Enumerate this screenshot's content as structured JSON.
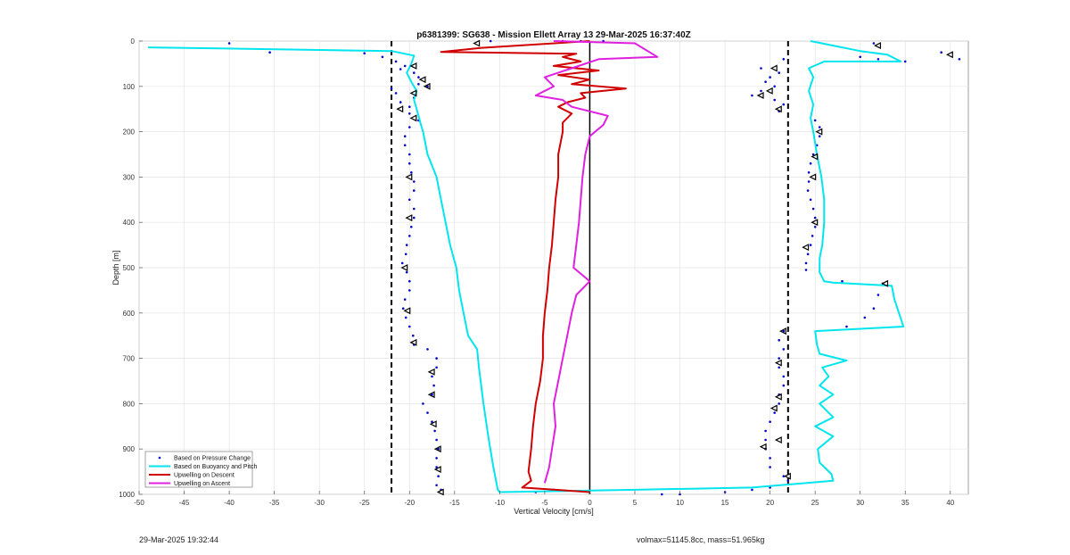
{
  "chart_data": {
    "type": "line",
    "title": "p6381399: SG638 - Mission Ellett Array 13 29-Mar-2025 16:37:40Z",
    "xlabel": "Vertical Velocity [cm/s]",
    "ylabel": "Depth [m]",
    "xlim": [
      -50,
      42
    ],
    "ylim": [
      0,
      1000
    ],
    "y_reversed": true,
    "grid": true,
    "x_ticks": [
      -50,
      -45,
      -40,
      -35,
      -30,
      -25,
      -20,
      -15,
      -10,
      -5,
      0,
      5,
      10,
      15,
      20,
      25,
      30,
      35,
      40
    ],
    "y_ticks": [
      0,
      100,
      200,
      300,
      400,
      500,
      600,
      700,
      800,
      900,
      1000
    ],
    "reference_lines": {
      "dashed_x": [
        -22,
        22
      ],
      "solid_x": [
        0
      ]
    },
    "legend_position": "bottom-left",
    "series": [
      {
        "name": "Based on Pressure Change",
        "color": "#0000cc",
        "style": "dots",
        "points": [
          [
            -40,
            5
          ],
          [
            -25,
            27
          ],
          [
            -35.5,
            25
          ],
          [
            -23,
            35
          ],
          [
            -21.5,
            45
          ],
          [
            -20.5,
            55
          ],
          [
            -21,
            62
          ],
          [
            -19.5,
            70
          ],
          [
            -19,
            80
          ],
          [
            -19,
            95
          ],
          [
            -18,
            100
          ],
          [
            -22,
            105
          ],
          [
            -21.5,
            115
          ],
          [
            -19.5,
            125
          ],
          [
            -21,
            135
          ],
          [
            -20,
            145
          ],
          [
            -20,
            160
          ],
          [
            -19,
            175
          ],
          [
            -20,
            190
          ],
          [
            -20.5,
            210
          ],
          [
            -20.5,
            230
          ],
          [
            -20,
            250
          ],
          [
            -20,
            270
          ],
          [
            -19.8,
            290
          ],
          [
            -19.5,
            310
          ],
          [
            -19.5,
            330
          ],
          [
            -20,
            350
          ],
          [
            -19.5,
            370
          ],
          [
            -19.5,
            390
          ],
          [
            -19.8,
            410
          ],
          [
            -20,
            430
          ],
          [
            -20.3,
            450
          ],
          [
            -20.4,
            470
          ],
          [
            -20.8,
            490
          ],
          [
            -20.3,
            510
          ],
          [
            -20,
            530
          ],
          [
            -20,
            550
          ],
          [
            -20.5,
            570
          ],
          [
            -20.7,
            590
          ],
          [
            -20.4,
            610
          ],
          [
            -20,
            630
          ],
          [
            -19.6,
            650
          ],
          [
            -19.5,
            670
          ],
          [
            -18,
            680
          ],
          [
            -17,
            700
          ],
          [
            -17,
            720
          ],
          [
            -17.5,
            740
          ],
          [
            -17.3,
            760
          ],
          [
            -17.5,
            780
          ],
          [
            -18.5,
            800
          ],
          [
            -18,
            820
          ],
          [
            -17.5,
            840
          ],
          [
            -17.2,
            860
          ],
          [
            -17,
            880
          ],
          [
            -16.8,
            900
          ],
          [
            -17,
            920
          ],
          [
            -17,
            940
          ],
          [
            -16.8,
            960
          ],
          [
            -17,
            980
          ],
          [
            -16.5,
            990
          ],
          [
            -3,
            0
          ],
          [
            -1,
            0
          ],
          [
            1.5,
            0
          ],
          [
            -11,
            0
          ],
          [
            21.5,
            40
          ],
          [
            19,
            60
          ],
          [
            21,
            70
          ],
          [
            20,
            80
          ],
          [
            19.5,
            90
          ],
          [
            20.5,
            100
          ],
          [
            19,
            110
          ],
          [
            18,
            120
          ],
          [
            20.5,
            130
          ],
          [
            21.5,
            140
          ],
          [
            21,
            155
          ],
          [
            25,
            175
          ],
          [
            25.5,
            190
          ],
          [
            25.5,
            210
          ],
          [
            25.2,
            230
          ],
          [
            24.8,
            250
          ],
          [
            24.5,
            270
          ],
          [
            24.3,
            290
          ],
          [
            24.3,
            310
          ],
          [
            24.2,
            330
          ],
          [
            24.5,
            350
          ],
          [
            24.8,
            370
          ],
          [
            25,
            390
          ],
          [
            25,
            410
          ],
          [
            24.7,
            430
          ],
          [
            24.5,
            450
          ],
          [
            24.2,
            470
          ],
          [
            24,
            490
          ],
          [
            24,
            505
          ],
          [
            28,
            530
          ],
          [
            32.5,
            535
          ],
          [
            32,
            560
          ],
          [
            31.5,
            590
          ],
          [
            30.5,
            610
          ],
          [
            28.5,
            630
          ],
          [
            21.5,
            640
          ],
          [
            21,
            660
          ],
          [
            21.5,
            680
          ],
          [
            21,
            700
          ],
          [
            21,
            720
          ],
          [
            21.5,
            740
          ],
          [
            21.5,
            760
          ],
          [
            21,
            780
          ],
          [
            21,
            800
          ],
          [
            20.5,
            820
          ],
          [
            20,
            840
          ],
          [
            19.5,
            860
          ],
          [
            19.5,
            880
          ],
          [
            19.5,
            900
          ],
          [
            20,
            920
          ],
          [
            20,
            940
          ],
          [
            21.5,
            960
          ],
          [
            22,
            970
          ],
          [
            30,
            35
          ],
          [
            32,
            40
          ],
          [
            35,
            45
          ],
          [
            31.5,
            5
          ],
          [
            39,
            25
          ],
          [
            41,
            40
          ],
          [
            10,
            1000
          ],
          [
            15,
            995
          ],
          [
            18,
            990
          ],
          [
            20,
            985
          ],
          [
            8,
            1000
          ],
          [
            -4,
            990
          ],
          [
            -6,
            995
          ]
        ]
      },
      {
        "name": "Based on Buoyancy and Pitch",
        "color": "#00e5ee",
        "style": "line",
        "points": [
          [
            -49,
            14
          ],
          [
            -22,
            22
          ],
          [
            -19.5,
            32
          ],
          [
            -19.8,
            50
          ],
          [
            -20.3,
            70
          ],
          [
            -19.8,
            90
          ],
          [
            -19.2,
            110
          ],
          [
            -19.5,
            130
          ],
          [
            -19.2,
            150
          ],
          [
            -18.8,
            180
          ],
          [
            -18.5,
            200
          ],
          [
            -18,
            250
          ],
          [
            -17,
            300
          ],
          [
            -16.5,
            350
          ],
          [
            -16,
            400
          ],
          [
            -15.5,
            450
          ],
          [
            -14.8,
            500
          ],
          [
            -14.5,
            550
          ],
          [
            -14,
            600
          ],
          [
            -13.5,
            650
          ],
          [
            -12.5,
            680
          ],
          [
            -12.3,
            720
          ],
          [
            -11.8,
            800
          ],
          [
            -11.2,
            880
          ],
          [
            -10.7,
            940
          ],
          [
            -10.2,
            990
          ],
          [
            -10,
            995
          ],
          [
            5,
            990
          ],
          [
            18,
            985
          ],
          [
            27,
            970
          ],
          [
            26.8,
            955
          ],
          [
            25.5,
            930
          ],
          [
            25.3,
            900
          ],
          [
            27,
            872
          ],
          [
            25,
            850
          ],
          [
            27,
            830
          ],
          [
            25.5,
            800
          ],
          [
            27,
            780
          ],
          [
            25.5,
            760
          ],
          [
            26.5,
            740
          ],
          [
            25.8,
            720
          ],
          [
            28.5,
            705
          ],
          [
            25.5,
            690
          ],
          [
            25.2,
            670
          ],
          [
            25,
            640
          ],
          [
            34.8,
            630
          ],
          [
            34.3,
            600
          ],
          [
            33.8,
            570
          ],
          [
            33.5,
            540
          ],
          [
            27,
            533
          ],
          [
            26,
            530
          ],
          [
            25.5,
            510
          ],
          [
            25.5,
            480
          ],
          [
            25.8,
            450
          ],
          [
            26,
            400
          ],
          [
            26,
            350
          ],
          [
            25.7,
            300
          ],
          [
            25.2,
            250
          ],
          [
            24.8,
            200
          ],
          [
            24.5,
            170
          ],
          [
            24.8,
            140
          ],
          [
            24.3,
            110
          ],
          [
            24.8,
            80
          ],
          [
            24.3,
            60
          ],
          [
            26,
            45
          ],
          [
            34.5,
            45
          ],
          [
            33,
            30
          ],
          [
            30,
            22
          ],
          [
            27,
            10
          ],
          [
            24.5,
            0
          ]
        ]
      },
      {
        "name": "Upwelling on Descent",
        "color": "#d00000",
        "style": "line",
        "points": [
          [
            0,
            0
          ],
          [
            -12,
            15
          ],
          [
            -16.5,
            24
          ],
          [
            -1.5,
            28
          ],
          [
            -3,
            35
          ],
          [
            -1,
            45
          ],
          [
            -4,
            55
          ],
          [
            1,
            65
          ],
          [
            -3.5,
            75
          ],
          [
            0,
            85
          ],
          [
            -2,
            95
          ],
          [
            4,
            105
          ],
          [
            -1,
            115
          ],
          [
            -0.5,
            125
          ],
          [
            -2.5,
            135
          ],
          [
            -3.5,
            145
          ],
          [
            -2,
            160
          ],
          [
            -3,
            180
          ],
          [
            -3,
            200
          ],
          [
            -3.5,
            250
          ],
          [
            -3.5,
            300
          ],
          [
            -3.8,
            350
          ],
          [
            -4,
            400
          ],
          [
            -4.2,
            450
          ],
          [
            -4.5,
            500
          ],
          [
            -4.7,
            550
          ],
          [
            -5,
            600
          ],
          [
            -5.2,
            650
          ],
          [
            -5.2,
            700
          ],
          [
            -5.5,
            750
          ],
          [
            -6,
            800
          ],
          [
            -6.3,
            850
          ],
          [
            -6.5,
            900
          ],
          [
            -6.8,
            950
          ],
          [
            -6.5,
            970
          ],
          [
            -7.5,
            985
          ],
          [
            0,
            995
          ]
        ]
      },
      {
        "name": "Upwelling on Ascent",
        "color": "#e020e0",
        "style": "line",
        "points": [
          [
            -4,
            0
          ],
          [
            5,
            5
          ],
          [
            7.5,
            35
          ],
          [
            1,
            40
          ],
          [
            -2,
            60
          ],
          [
            -5,
            80
          ],
          [
            -4,
            100
          ],
          [
            -6,
            120
          ],
          [
            -3,
            130
          ],
          [
            -2,
            145
          ],
          [
            2,
            165
          ],
          [
            1.5,
            185
          ],
          [
            0,
            210
          ],
          [
            -0.5,
            250
          ],
          [
            -0.8,
            300
          ],
          [
            -1,
            350
          ],
          [
            -1.2,
            400
          ],
          [
            -1.5,
            450
          ],
          [
            -1.8,
            500
          ],
          [
            0,
            530
          ],
          [
            -1.5,
            560
          ],
          [
            -2,
            600
          ],
          [
            -2.5,
            650
          ],
          [
            -3,
            700
          ],
          [
            -3.5,
            750
          ],
          [
            -4,
            800
          ],
          [
            -3.8,
            850
          ],
          [
            -4.2,
            900
          ],
          [
            -4.5,
            940
          ],
          [
            -5,
            975
          ]
        ]
      }
    ],
    "annotation_markers": {
      "color": "#000000",
      "shape": "left-triangle",
      "points": [
        [
          -12.5,
          5
        ],
        [
          -19.5,
          55
        ],
        [
          -18.5,
          85
        ],
        [
          -18,
          100
        ],
        [
          -19.5,
          115
        ],
        [
          -21,
          150
        ],
        [
          -19.5,
          170
        ],
        [
          -20,
          300
        ],
        [
          -20,
          390
        ],
        [
          -20.5,
          500
        ],
        [
          -20.2,
          595
        ],
        [
          -19.5,
          665
        ],
        [
          -17.5,
          730
        ],
        [
          -17.5,
          780
        ],
        [
          -17.3,
          845
        ],
        [
          -16.8,
          900
        ],
        [
          -16.8,
          945
        ],
        [
          -16.5,
          995
        ],
        [
          32,
          10
        ],
        [
          40,
          30
        ],
        [
          20.5,
          60
        ],
        [
          20,
          110
        ],
        [
          19,
          120
        ],
        [
          21,
          150
        ],
        [
          25.5,
          200
        ],
        [
          25,
          255
        ],
        [
          24.8,
          300
        ],
        [
          25,
          400
        ],
        [
          24,
          455
        ],
        [
          32.8,
          535
        ],
        [
          21.5,
          640
        ],
        [
          21,
          710
        ],
        [
          21,
          785
        ],
        [
          20.5,
          810
        ],
        [
          21,
          880
        ],
        [
          19.3,
          895
        ],
        [
          22,
          960
        ]
      ]
    }
  },
  "footer": {
    "left_text": "29-Mar-2025 19:32:44",
    "right_text": "volmax=51145.8cc, mass=51.965kg"
  }
}
